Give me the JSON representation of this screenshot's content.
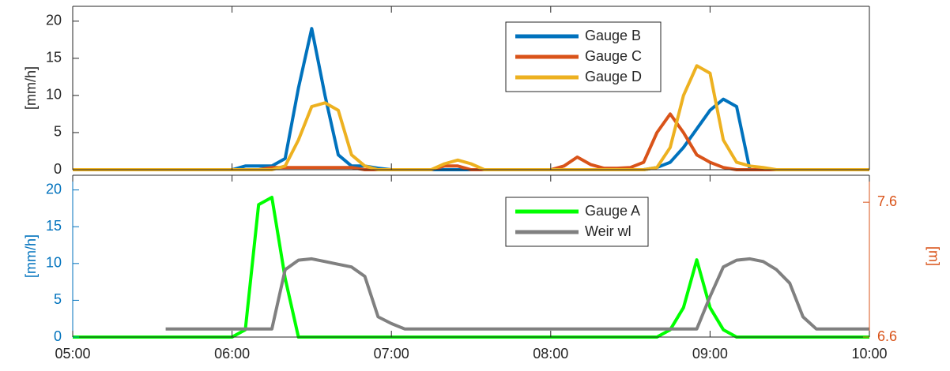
{
  "chart_data": [
    {
      "type": "line",
      "ylabel": "[mm/h]",
      "xlim": [
        "05:00",
        "10:00"
      ],
      "ylim": [
        0,
        22
      ],
      "yticks": [
        0,
        5,
        10,
        15,
        20
      ],
      "x": [
        "05:00",
        "05:05",
        "05:10",
        "05:15",
        "05:20",
        "05:25",
        "05:30",
        "05:35",
        "05:40",
        "05:45",
        "05:50",
        "05:55",
        "06:00",
        "06:05",
        "06:10",
        "06:15",
        "06:20",
        "06:25",
        "06:30",
        "06:35",
        "06:40",
        "06:45",
        "06:50",
        "06:55",
        "07:00",
        "07:05",
        "07:10",
        "07:15",
        "07:20",
        "07:25",
        "07:30",
        "07:35",
        "07:40",
        "07:45",
        "07:50",
        "07:55",
        "08:00",
        "08:05",
        "08:10",
        "08:15",
        "08:20",
        "08:25",
        "08:30",
        "08:35",
        "08:40",
        "08:45",
        "08:50",
        "08:55",
        "09:00",
        "09:05",
        "09:10",
        "09:15",
        "09:20",
        "09:25",
        "09:30",
        "09:35",
        "09:40",
        "09:45",
        "09:50",
        "09:55",
        "10:00"
      ],
      "series": [
        {
          "name": "Gauge B",
          "color": "#0072BD",
          "values": [
            0,
            0,
            0,
            0,
            0,
            0,
            0,
            0,
            0,
            0,
            0,
            0,
            0,
            0.5,
            0.5,
            0.5,
            1.5,
            11,
            19,
            10,
            2,
            0.5,
            0.5,
            0.2,
            0,
            0,
            0,
            0,
            0,
            0,
            0,
            0,
            0,
            0,
            0,
            0,
            0,
            0,
            0,
            0,
            0,
            0,
            0,
            0,
            0.3,
            1,
            3,
            5.5,
            8,
            9.5,
            8.5,
            0,
            0,
            0,
            0,
            0,
            0,
            0,
            0,
            0,
            0
          ]
        },
        {
          "name": "Gauge C",
          "color": "#D95319",
          "values": [
            0,
            0,
            0,
            0,
            0,
            0,
            0,
            0,
            0,
            0,
            0,
            0,
            0,
            0,
            0,
            0.3,
            0.3,
            0.3,
            0.3,
            0.3,
            0.3,
            0.3,
            0,
            0,
            0,
            0,
            0,
            0,
            0.5,
            0.5,
            0,
            0,
            0,
            0,
            0,
            0,
            0,
            0.5,
            1.7,
            0.7,
            0.2,
            0.2,
            0.3,
            1,
            5,
            7.5,
            5,
            2,
            1,
            0.3,
            0,
            0,
            0,
            0,
            0,
            0,
            0,
            0,
            0,
            0,
            0
          ]
        },
        {
          "name": "Gauge D",
          "color": "#EDB120",
          "values": [
            0,
            0,
            0,
            0,
            0,
            0,
            0,
            0,
            0,
            0,
            0,
            0,
            0,
            0,
            0,
            0,
            0.5,
            4,
            8.5,
            9,
            8,
            2,
            0.5,
            0,
            0,
            0,
            0,
            0,
            0.8,
            1.3,
            0.8,
            0,
            0,
            0,
            0,
            0,
            0,
            0,
            0,
            0,
            0,
            0,
            0,
            0,
            0.3,
            3,
            10,
            14,
            13,
            4,
            1,
            0.5,
            0.3,
            0,
            0,
            0,
            0,
            0,
            0,
            0,
            0
          ]
        }
      ]
    },
    {
      "type": "line",
      "ylabel": "[mm/h]",
      "y2label": "[m]",
      "y_color": "#0072BD",
      "y2_color": "#D95319",
      "xlim": [
        "05:00",
        "10:00"
      ],
      "xticks": [
        "05:00",
        "06:00",
        "07:00",
        "08:00",
        "09:00",
        "10:00"
      ],
      "ylim": [
        0,
        22
      ],
      "yticks": [
        0,
        5,
        10,
        15,
        20
      ],
      "y2lim": [
        6.6,
        7.8
      ],
      "y2ticks": [
        6.6,
        7.6
      ],
      "x": [
        "05:00",
        "05:05",
        "05:10",
        "05:15",
        "05:20",
        "05:25",
        "05:30",
        "05:35",
        "05:40",
        "05:45",
        "05:50",
        "05:55",
        "06:00",
        "06:05",
        "06:10",
        "06:15",
        "06:20",
        "06:25",
        "06:30",
        "06:35",
        "06:40",
        "06:45",
        "06:50",
        "06:55",
        "07:00",
        "07:05",
        "07:10",
        "07:15",
        "07:20",
        "07:25",
        "07:30",
        "07:35",
        "07:40",
        "07:45",
        "07:50",
        "07:55",
        "08:00",
        "08:05",
        "08:10",
        "08:15",
        "08:20",
        "08:25",
        "08:30",
        "08:35",
        "08:40",
        "08:45",
        "08:50",
        "08:55",
        "09:00",
        "09:05",
        "09:10",
        "09:15",
        "09:20",
        "09:25",
        "09:30",
        "09:35",
        "09:40",
        "09:45",
        "09:50",
        "09:55",
        "10:00"
      ],
      "series": [
        {
          "name": "Gauge A",
          "color": "#00FF00",
          "values": [
            0,
            0,
            0,
            0,
            0,
            0,
            0,
            0,
            0,
            0,
            0,
            0,
            0,
            1,
            18,
            19,
            8,
            0,
            0,
            0,
            0,
            0,
            0,
            0,
            0,
            0,
            0,
            0,
            0,
            0,
            0,
            0,
            0,
            0,
            0,
            0,
            0,
            0,
            0,
            0,
            0,
            0,
            0,
            0,
            0,
            1,
            4,
            10.5,
            4,
            1,
            0,
            0,
            0,
            0,
            0,
            0,
            0,
            0,
            0,
            0,
            0
          ]
        },
        {
          "name": "Weir wl",
          "color": "#808080",
          "axis": "y2",
          "values": [
            null,
            null,
            null,
            null,
            null,
            null,
            null,
            6.66,
            6.66,
            6.66,
            6.66,
            6.66,
            6.66,
            6.66,
            6.66,
            6.66,
            7.1,
            7.17,
            7.18,
            7.16,
            7.14,
            7.12,
            7.05,
            6.75,
            6.7,
            6.66,
            6.66,
            6.66,
            6.66,
            6.66,
            6.66,
            6.66,
            6.66,
            6.66,
            6.66,
            6.66,
            6.66,
            6.66,
            6.66,
            6.66,
            6.66,
            6.66,
            6.66,
            6.66,
            6.66,
            6.66,
            6.66,
            6.66,
            6.9,
            7.12,
            7.17,
            7.18,
            7.16,
            7.1,
            7.0,
            6.75,
            6.66,
            6.66,
            6.66,
            6.66,
            6.66
          ]
        }
      ]
    }
  ]
}
